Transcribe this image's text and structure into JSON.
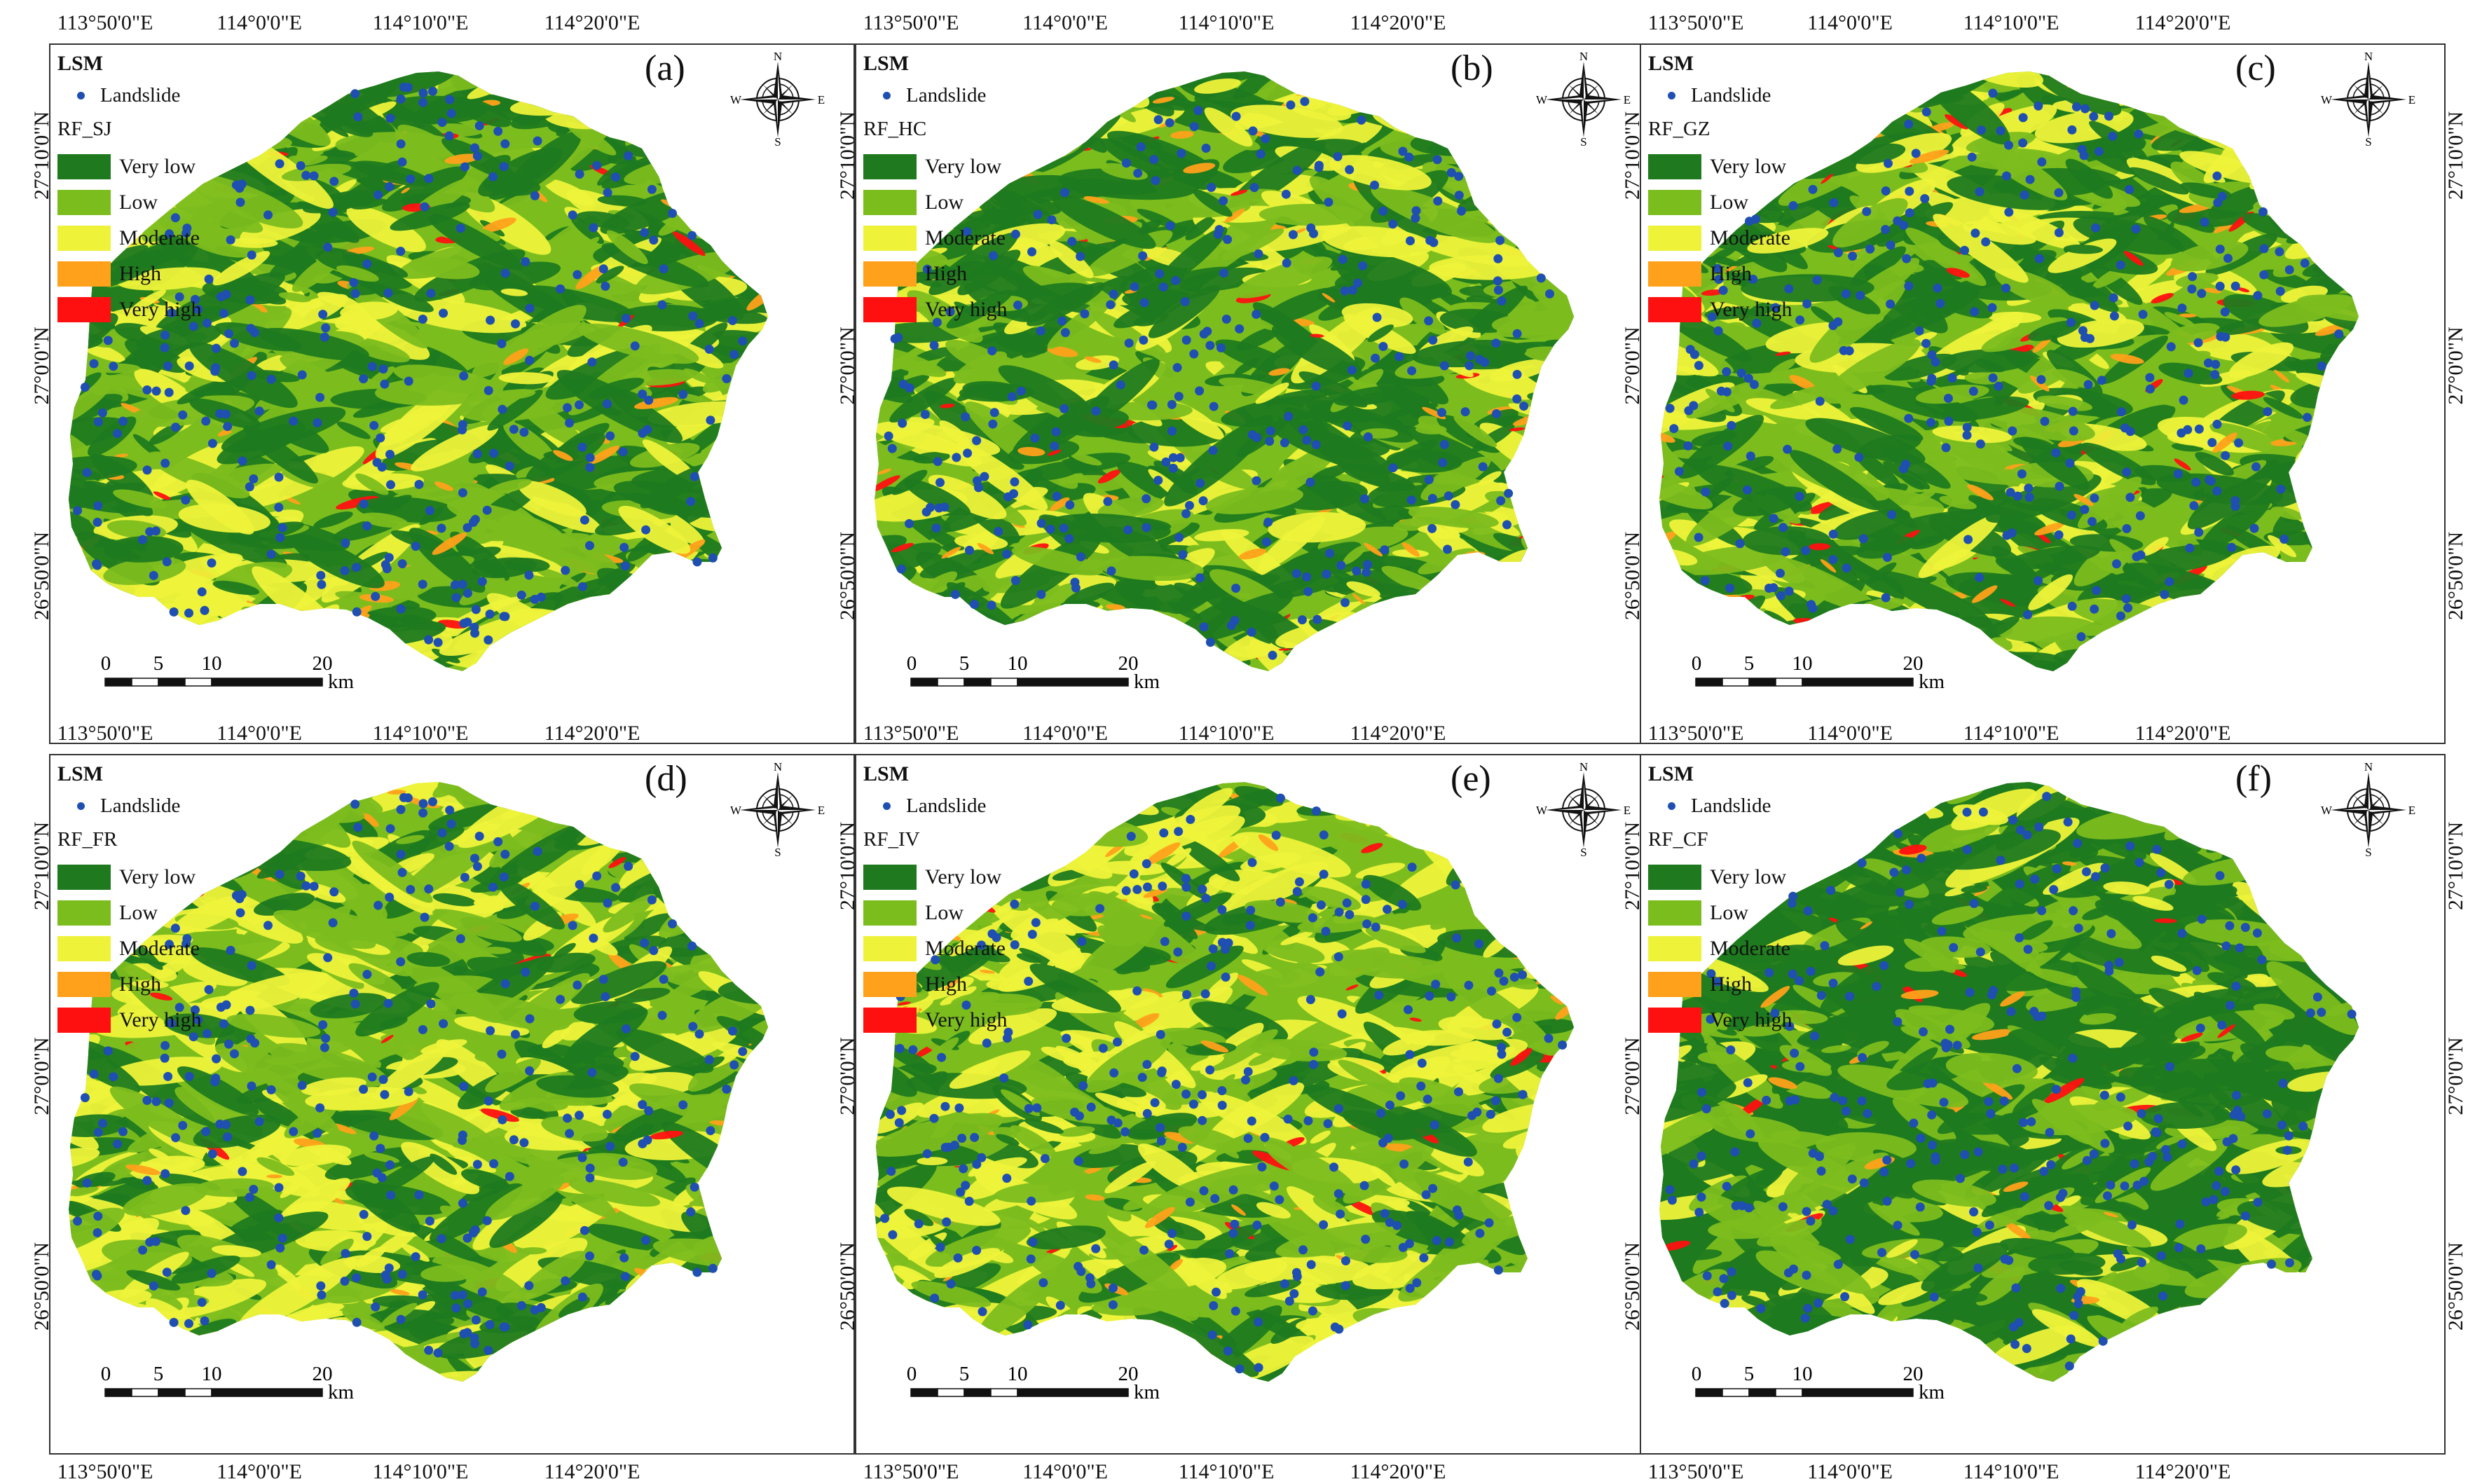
{
  "colors": {
    "landslide": "#1f4fb0",
    "classes": [
      "#1f7a1f",
      "#7cbd1e",
      "#eef33a",
      "#ffa11a",
      "#ff1010"
    ]
  },
  "legend": {
    "title": "LSM",
    "landslide_label": "Landslide",
    "classes": [
      "Very low",
      "Low",
      "Moderate",
      "High",
      "Very high"
    ]
  },
  "axes": {
    "lon_ticks": [
      "113°50'0\"E",
      "114°0'0\"E",
      "114°10'0\"E",
      "114°20'0\"E"
    ],
    "lat_ticks": [
      "27°10'0\"N",
      "27°0'0\"N",
      "26°50'0\"N"
    ]
  },
  "scale_bar": {
    "labels": [
      "0",
      "5",
      "10",
      "20"
    ],
    "unit": "km"
  },
  "compass": {
    "n": "N",
    "s": "S",
    "e": "E",
    "w": "W"
  },
  "panels": [
    {
      "label": "(a)",
      "model": "RF_SJ"
    },
    {
      "label": "(b)",
      "model": "RF_HC"
    },
    {
      "label": "(c)",
      "model": "RF_GZ"
    },
    {
      "label": "(d)",
      "model": "RF_FR"
    },
    {
      "label": "(e)",
      "model": "RF_IV"
    },
    {
      "label": "(f)",
      "model": "RF_CF"
    }
  ]
}
